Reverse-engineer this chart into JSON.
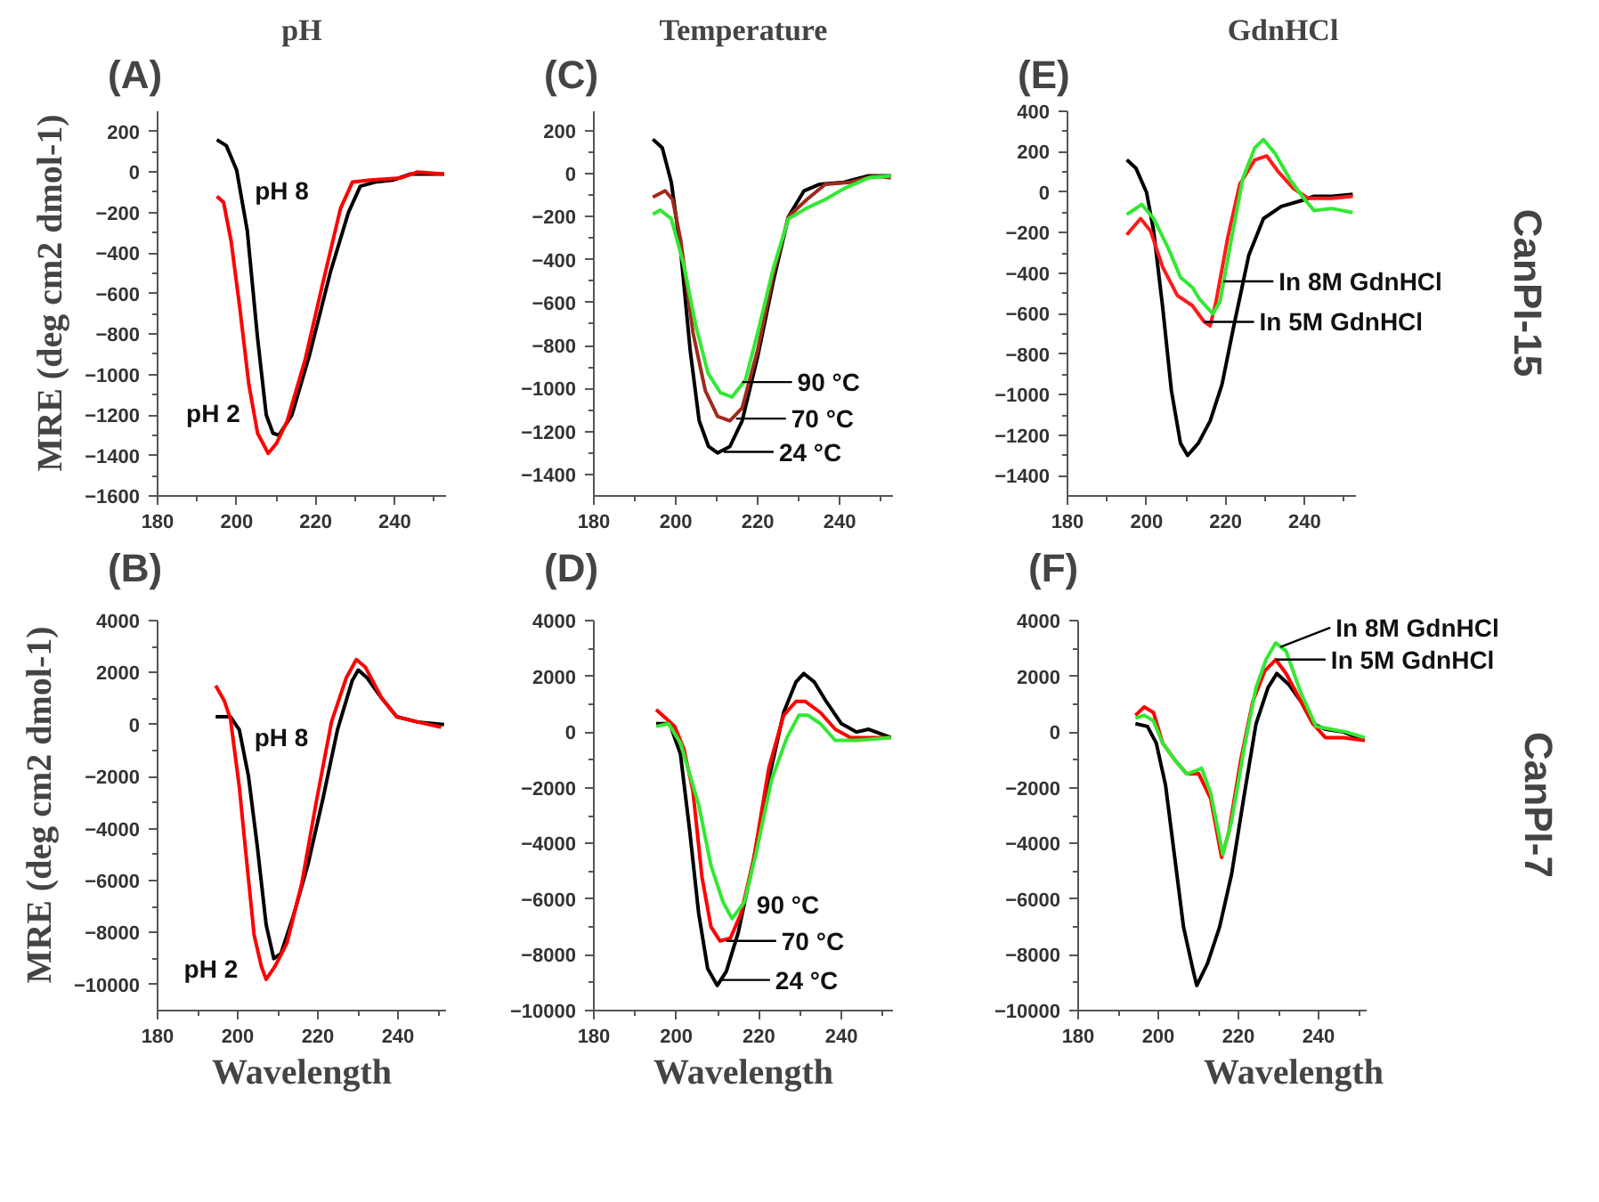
{
  "chart_data": [
    {
      "type": "line",
      "title": "(A)",
      "subtitle": "pH",
      "ylabel": "MRE (deg cm2 dmol-1)",
      "xlim": [
        180,
        253
      ],
      "ylim": [
        -1600,
        300
      ],
      "xticks": [
        180,
        200,
        220,
        240
      ],
      "yticks": [
        -1600,
        -1400,
        -1200,
        -1000,
        -800,
        -600,
        -400,
        -200,
        0,
        200
      ],
      "series": [
        {
          "color": "#000000",
          "x": [
            195,
            197.4,
            200,
            202.7,
            205.3,
            207.5,
            209.2,
            210.7,
            214,
            218.5,
            223.8,
            228.3,
            231.3,
            235,
            239.5,
            244,
            252.5
          ],
          "values": [
            160,
            130,
            10,
            -290,
            -820,
            -1200,
            -1290,
            -1300,
            -1200,
            -900,
            -490,
            -200,
            -70,
            -50,
            -40,
            -10,
            -10
          ]
        },
        {
          "color": "#ff0000",
          "x": [
            195,
            196.7,
            198.6,
            200.8,
            203.1,
            205.3,
            208,
            210.1,
            212.8,
            217.3,
            221.8,
            226.3,
            229.3,
            233.8,
            241.3,
            245.8,
            252.5
          ],
          "values": [
            -120,
            -150,
            -340,
            -670,
            -1050,
            -1290,
            -1390,
            -1340,
            -1230,
            -930,
            -550,
            -180,
            -50,
            -40,
            -30,
            0,
            -10
          ]
        }
      ],
      "annotations": [
        {
          "text": "pH 8",
          "x": 201,
          "y": -90
        },
        {
          "text": "pH 2",
          "x": 204.5,
          "y": -1190
        }
      ]
    },
    {
      "type": "line",
      "title": "(C)",
      "subtitle": "Temperature",
      "xlim": [
        180,
        253
      ],
      "ylim": [
        -1500,
        290
      ],
      "xticks": [
        180,
        200,
        220,
        240
      ],
      "yticks": [
        -1400,
        -1200,
        -1000,
        -800,
        -600,
        -400,
        -200,
        0,
        200
      ],
      "series": [
        {
          "color": "#000000",
          "x": [
            194.4,
            196.7,
            198.9,
            201.2,
            203.5,
            205.7,
            208,
            210.2,
            213.2,
            216.2,
            220,
            223.8,
            227.5,
            231.3,
            235,
            241,
            247,
            252.5
          ],
          "values": [
            160,
            120,
            -40,
            -360,
            -820,
            -1150,
            -1270,
            -1300,
            -1270,
            -1150,
            -850,
            -500,
            -200,
            -80,
            -50,
            -40,
            -10,
            -10
          ]
        },
        {
          "color": "#a0291e",
          "x": [
            194.4,
            197.4,
            199.2,
            201.2,
            204.2,
            207.2,
            210.2,
            213.2,
            216.2,
            220,
            223.8,
            227.5,
            232,
            236.5,
            242.6,
            248.6,
            252.5
          ],
          "values": [
            -110,
            -80,
            -120,
            -310,
            -740,
            -1010,
            -1130,
            -1150,
            -1090,
            -820,
            -470,
            -200,
            -120,
            -50,
            -40,
            -10,
            -20
          ]
        },
        {
          "color": "#33e833",
          "x": [
            194.4,
            196.2,
            198.9,
            201.9,
            204.9,
            207.9,
            210.9,
            213.7,
            217,
            220,
            223.8,
            227.5,
            232,
            236.5,
            241,
            247,
            252.5
          ],
          "values": [
            -190,
            -170,
            -210,
            -420,
            -710,
            -930,
            -1020,
            -1040,
            -960,
            -740,
            -440,
            -210,
            -160,
            -120,
            -70,
            -20,
            -10
          ]
        }
      ],
      "annotations": [
        {
          "text": "90 °C",
          "x": 216.2,
          "y": -970
        },
        {
          "text": "70 °C",
          "x": 214.7,
          "y": -1140
        },
        {
          "text": "24 °C",
          "x": 211.7,
          "y": -1295
        }
      ]
    },
    {
      "type": "line",
      "title": "(E)",
      "subtitle": "GdnHCl",
      "xlim": [
        180,
        253
      ],
      "ylim": [
        -1500,
        400
      ],
      "xticks": [
        180,
        200,
        220,
        240
      ],
      "yticks": [
        -1400,
        -1200,
        -1000,
        -800,
        -600,
        -400,
        -200,
        0,
        200,
        400
      ],
      "series": [
        {
          "color": "#000000",
          "x": [
            195,
            197.3,
            200,
            201.8,
            204.1,
            206.3,
            208.6,
            210.4,
            213.1,
            216.1,
            219.1,
            222.1,
            225.9,
            229.6,
            234.1,
            239.4,
            242.4,
            246.9,
            252.2
          ],
          "values": [
            160,
            120,
            0,
            -190,
            -570,
            -980,
            -1240,
            -1300,
            -1240,
            -1130,
            -950,
            -660,
            -310,
            -130,
            -70,
            -40,
            -20,
            -20,
            -10
          ]
        },
        {
          "color": "#ff1a1a",
          "x": [
            195,
            198.5,
            201,
            204.1,
            207.8,
            211.6,
            214.6,
            216.1,
            217.6,
            220.6,
            223.6,
            227.4,
            230.4,
            233.4,
            237.1,
            240.9,
            246.9,
            252.2
          ],
          "values": [
            -210,
            -130,
            -190,
            -370,
            -510,
            -560,
            -640,
            -660,
            -540,
            -220,
            40,
            160,
            180,
            100,
            20,
            -30,
            -30,
            -20
          ]
        },
        {
          "color": "#33e833",
          "x": [
            195,
            198.8,
            201.8,
            205.6,
            208.6,
            211.6,
            213.5,
            216.8,
            218.6,
            221.3,
            224.4,
            227.4,
            229.6,
            232.6,
            236.4,
            240.2,
            242.4,
            246.9,
            252.2
          ],
          "values": [
            -110,
            -60,
            -130,
            -280,
            -420,
            -470,
            -530,
            -600,
            -540,
            -250,
            70,
            220,
            260,
            190,
            60,
            -40,
            -90,
            -80,
            -100
          ]
        }
      ],
      "annotations": [
        {
          "text": "In 8M GdnHCl",
          "x": 219.5,
          "y": -440
        },
        {
          "text": "In 5M GdnHCl",
          "x": 214.6,
          "y": -640
        },
        "CanPI-15"
      ]
    },
    {
      "type": "line",
      "title": "(B)",
      "ylabel": "MRE (deg cm2 dmol-1)",
      "xlabel": "Wavelength",
      "xlim": [
        180,
        252
      ],
      "ylim": [
        -11000,
        4000
      ],
      "xticks": [
        180,
        200,
        220,
        240
      ],
      "yticks": [
        -10000,
        -8000,
        -6000,
        -4000,
        -2000,
        0,
        2000,
        4000
      ],
      "series": [
        {
          "color": "#000000",
          "x": [
            194.5,
            198.2,
            200.4,
            202.7,
            204.9,
            207.1,
            209,
            210.8,
            213.8,
            217.5,
            221.2,
            224.9,
            228.6,
            230.1,
            232.3,
            236,
            239.7,
            244.9,
            251.5
          ],
          "values": [
            300,
            300,
            -200,
            -2000,
            -4700,
            -7700,
            -9000,
            -8800,
            -7400,
            -5400,
            -2900,
            -200,
            1700,
            2100,
            1800,
            1000,
            300,
            100,
            0
          ]
        },
        {
          "color": "#ff0000",
          "x": [
            194.5,
            196.7,
            198.2,
            200.4,
            202.2,
            204.1,
            205.9,
            207.1,
            209.3,
            212.3,
            216,
            219.7,
            223.4,
            227.1,
            229.6,
            231.9,
            236,
            239.7,
            244.9,
            250.8
          ],
          "values": [
            1500,
            900,
            200,
            -2400,
            -5200,
            -8100,
            -9300,
            -9800,
            -9300,
            -8400,
            -6100,
            -2900,
            100,
            1800,
            2500,
            2200,
            1000,
            300,
            100,
            -100
          ]
        }
      ],
      "annotations": [
        {
          "text": "pH 8",
          "x": 200.6,
          "y": -500
        },
        {
          "text": "pH 2",
          "x": 203.6,
          "y": -9400
        }
      ]
    },
    {
      "type": "line",
      "title": "(D)",
      "xlabel": "Wavelength",
      "xlim": [
        180,
        252.5
      ],
      "ylim": [
        -10000,
        4000
      ],
      "xticks": [
        180,
        200,
        220,
        240
      ],
      "yticks": [
        -10000,
        -8000,
        -6000,
        -4000,
        -2000,
        0,
        2000,
        4000
      ],
      "series": [
        {
          "color": "#000000",
          "x": [
            195.1,
            198.4,
            201,
            203.2,
            205.4,
            207.6,
            209.9,
            212.1,
            215,
            218.7,
            222.4,
            226,
            229,
            230.9,
            233.4,
            236.3,
            240,
            243.7,
            246.6,
            252
          ],
          "values": [
            300,
            300,
            -800,
            -3500,
            -6500,
            -8500,
            -9100,
            -8600,
            -7200,
            -4600,
            -1700,
            700,
            1800,
            2100,
            1800,
            1100,
            300,
            0,
            100,
            -200
          ]
        },
        {
          "color": "#ff0000",
          "x": [
            195.1,
            197.4,
            199.6,
            201.8,
            204,
            206.2,
            208.4,
            210.6,
            213.1,
            215.7,
            218.7,
            222.4,
            226,
            229,
            231.2,
            234.9,
            238.5,
            242.2,
            246.6,
            252
          ],
          "values": [
            800,
            500,
            200,
            -600,
            -2100,
            -5200,
            -7000,
            -7500,
            -7400,
            -6500,
            -4600,
            -1300,
            600,
            1100,
            1100,
            700,
            100,
            -200,
            -200,
            -200
          ]
        },
        {
          "color": "#33e833",
          "x": [
            195.1,
            198.1,
            201,
            203.2,
            205.4,
            208.4,
            211.3,
            213.5,
            216.5,
            219.4,
            223.1,
            226.8,
            229.7,
            231.9,
            234.9,
            238.5,
            243.7,
            252
          ],
          "values": [
            200,
            300,
            -400,
            -1500,
            -2600,
            -4800,
            -6100,
            -6700,
            -6100,
            -4300,
            -1700,
            -200,
            600,
            600,
            300,
            -300,
            -300,
            -200
          ]
        }
      ],
      "annotations": [
        {
          "text": "90 °C",
          "x": 216,
          "y": -6200
        },
        {
          "text": "70 °C",
          "x": 212.1,
          "y": -7500
        },
        {
          "text": "24 °C",
          "x": 210.6,
          "y": -8900
        }
      ]
    },
    {
      "type": "line",
      "title": "(F)",
      "xlabel": "Wavelength",
      "xlim": [
        180,
        252
      ],
      "ylim": [
        -10000,
        4000
      ],
      "xticks": [
        180,
        200,
        220,
        240
      ],
      "yticks": [
        -10000,
        -8000,
        -6000,
        -4000,
        -2000,
        0,
        2000,
        4000
      ],
      "series": [
        {
          "color": "#000000",
          "x": [
            194.3,
            197.3,
            199.5,
            201.8,
            204.1,
            206.3,
            208.6,
            209.6,
            212.3,
            215.3,
            218.3,
            221.4,
            224.4,
            227.4,
            229.6,
            232.6,
            235.6,
            238.6,
            241.7,
            246.2,
            251.5
          ],
          "values": [
            300,
            200,
            -400,
            -1900,
            -4500,
            -7000,
            -8500,
            -9100,
            -8300,
            -7000,
            -5100,
            -2300,
            300,
            1600,
            2100,
            1700,
            1100,
            300,
            100,
            0,
            -300
          ]
        },
        {
          "color": "#ff0000",
          "x": [
            194.3,
            196.5,
            198.8,
            201.1,
            204.1,
            207.1,
            210.1,
            213.1,
            215.8,
            217.6,
            220.6,
            223.6,
            226.6,
            229.3,
            231.9,
            235.6,
            238.6,
            241.7,
            246.2,
            251.5
          ],
          "values": [
            600,
            900,
            700,
            -400,
            -1000,
            -1500,
            -1500,
            -2400,
            -4500,
            -3600,
            -1000,
            1100,
            2200,
            2600,
            2100,
            1100,
            300,
            -200,
            -200,
            -300
          ]
        },
        {
          "color": "#33e833",
          "x": [
            194.3,
            196.5,
            198.8,
            201.1,
            204.1,
            207.1,
            209.3,
            210.8,
            213.1,
            216.1,
            218.3,
            221.4,
            224.4,
            226.9,
            229.3,
            231.9,
            235.6,
            239.4,
            243.2,
            246.9,
            251.5
          ],
          "values": [
            500,
            600,
            400,
            -400,
            -1000,
            -1500,
            -1400,
            -1300,
            -2200,
            -4400,
            -3200,
            -600,
            1600,
            2600,
            3200,
            2900,
            1400,
            200,
            100,
            0,
            -200
          ]
        }
      ],
      "annotations": [
        {
          "text": "In 8M GdnHCl",
          "x": 230.5,
          "y": 3050
        },
        {
          "text": "In 5M GdnHCl",
          "x": 229.3,
          "y": 2600
        },
        "CanPI-7"
      ]
    }
  ]
}
